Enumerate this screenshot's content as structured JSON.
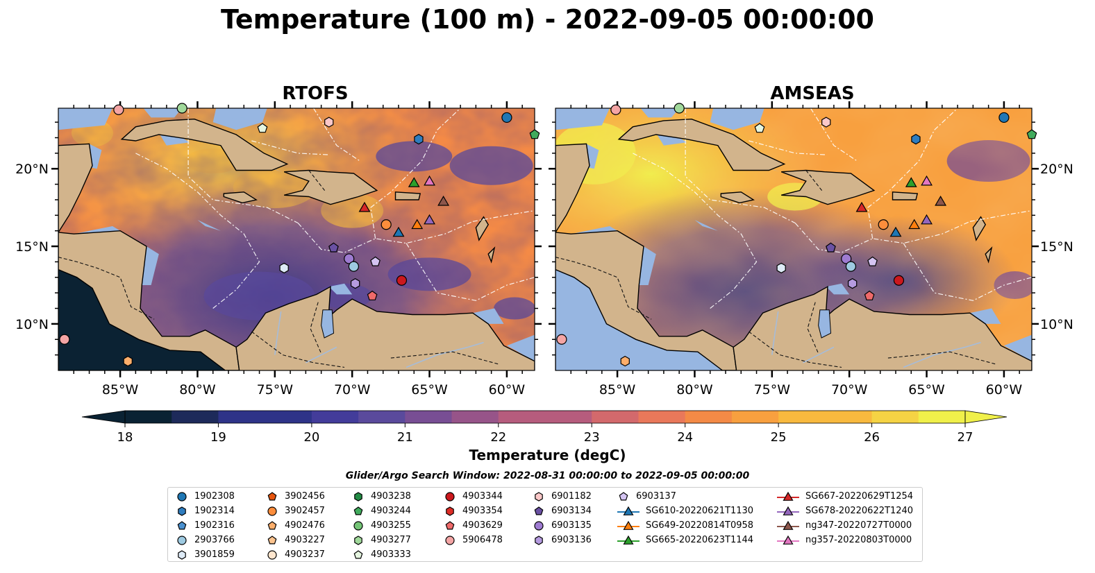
{
  "title": "Temperature (100 m) - 2022-09-05 00:00:00",
  "panels": [
    {
      "title": "RTOFS"
    },
    {
      "title": "AMSEAS"
    }
  ],
  "axes": {
    "lat_ticks": [
      "20°N",
      "15°N",
      "10°N"
    ],
    "lon_ticks": [
      "85°W",
      "80°W",
      "75°W",
      "70°W",
      "65°W",
      "60°W"
    ]
  },
  "colorbar": {
    "label": "Temperature (degC)",
    "min": 18,
    "max": 27,
    "ticks": [
      "18",
      "19",
      "20",
      "21",
      "22",
      "23",
      "24",
      "25",
      "26",
      "27"
    ],
    "extend": "both"
  },
  "search_window": "Glider/Argo Search Window: 2022-08-31 00:00:00 to 2022-09-05 00:00:00",
  "colors": {
    "land": "#d2b48c",
    "water_mask": "#97b6e1",
    "pacific_dark": "#0b2233",
    "cmap": [
      "#0a2233",
      "#1d2a5a",
      "#2e3388",
      "#433c9a",
      "#5a4a9c",
      "#784e94",
      "#975489",
      "#b65c7d",
      "#d3696c",
      "#e9785a",
      "#f48a46",
      "#f8a03f",
      "#f8b93e",
      "#f5d344",
      "#f0f04a"
    ]
  },
  "legend": {
    "columns": [
      [
        {
          "label": "1902308",
          "marker": "circle",
          "color": "#1f77b4"
        },
        {
          "label": "1902314",
          "marker": "hexagon",
          "color": "#2f7dbf"
        },
        {
          "label": "1902316",
          "marker": "pentagon",
          "color": "#4a90cf"
        },
        {
          "label": "2903766",
          "marker": "circle",
          "color": "#9ecae1"
        },
        {
          "label": "3901859",
          "marker": "hexagon",
          "color": "#deebf7"
        }
      ],
      [
        {
          "label": "3902456",
          "marker": "pentagon",
          "color": "#e6550d"
        },
        {
          "label": "3902457",
          "marker": "circle",
          "color": "#fd8d3c"
        },
        {
          "label": "4902476",
          "marker": "pentagon",
          "color": "#fdae6b"
        },
        {
          "label": "4903227",
          "marker": "pentagon",
          "color": "#fdc48f"
        },
        {
          "label": "4903237",
          "marker": "circle",
          "color": "#fee6ce"
        }
      ],
      [
        {
          "label": "4903238",
          "marker": "hexagon",
          "color": "#238b45"
        },
        {
          "label": "4903244",
          "marker": "pentagon",
          "color": "#41ab5d"
        },
        {
          "label": "4903255",
          "marker": "circle",
          "color": "#74c476"
        },
        {
          "label": "4903277",
          "marker": "hexagon",
          "color": "#a1d99b"
        },
        {
          "label": "4903333",
          "marker": "pentagon",
          "color": "#e5f5e0"
        }
      ],
      [
        {
          "label": "4903344",
          "marker": "circle",
          "color": "#cb181d"
        },
        {
          "label": "4903354",
          "marker": "hexagon",
          "color": "#de2d26"
        },
        {
          "label": "4903629",
          "marker": "pentagon",
          "color": "#ef6a6a"
        },
        {
          "label": "5906478",
          "marker": "circle",
          "color": "#f4a5a5"
        }
      ],
      [
        {
          "label": "6901182",
          "marker": "hexagon",
          "color": "#fbc8c8"
        },
        {
          "label": "6903134",
          "marker": "pentagon",
          "color": "#6a51a3"
        },
        {
          "label": "6903135",
          "marker": "circle",
          "color": "#9e7bd1"
        },
        {
          "label": "6903136",
          "marker": "hexagon",
          "color": "#b59be0"
        }
      ],
      [
        {
          "label": "6903137",
          "marker": "pentagon",
          "color": "#d4c4f2"
        },
        {
          "label": "SG610-20220621T1130",
          "marker": "triangle-line",
          "color": "#1f77b4"
        },
        {
          "label": "SG649-20220814T0958",
          "marker": "triangle-line",
          "color": "#ff7f0e"
        },
        {
          "label": "SG665-20220623T1144",
          "marker": "triangle-line",
          "color": "#2ca02c"
        }
      ],
      [
        {
          "label": "SG667-20220629T1254",
          "marker": "triangle-line",
          "color": "#d62728"
        },
        {
          "label": "SG678-20220622T1240",
          "marker": "triangle-line",
          "color": "#9467bd"
        },
        {
          "label": "ng347-20220727T0000",
          "marker": "triangle-line",
          "color": "#8c564b"
        },
        {
          "label": "ng357-20220803T0000",
          "marker": "triangle-line",
          "color": "#e377c2"
        }
      ]
    ]
  },
  "markers": [
    {
      "lon": -60.0,
      "lat": 23.3,
      "marker": "circle",
      "color": "#1f77b4"
    },
    {
      "lon": -65.7,
      "lat": 21.9,
      "marker": "hexagon",
      "color": "#2f7dbf"
    },
    {
      "lon": -70.2,
      "lat": 14.2,
      "marker": "circle",
      "color": "#9e7bd1"
    },
    {
      "lon": -69.9,
      "lat": 13.7,
      "marker": "circle",
      "color": "#9ecae1"
    },
    {
      "lon": -74.4,
      "lat": 13.6,
      "marker": "hexagon",
      "color": "#deebf7"
    },
    {
      "lon": -67.8,
      "lat": 16.4,
      "marker": "circle",
      "color": "#fd8d3c"
    },
    {
      "lon": -84.5,
      "lat": 7.6,
      "marker": "hexagon",
      "color": "#fdae6b"
    },
    {
      "lon": -58.2,
      "lat": 22.2,
      "marker": "pentagon",
      "color": "#41ab5d"
    },
    {
      "lon": -81.0,
      "lat": 23.9,
      "marker": "circle",
      "color": "#a1d99b"
    },
    {
      "lon": -75.8,
      "lat": 22.6,
      "marker": "pentagon",
      "color": "#e5f5e0"
    },
    {
      "lon": -66.8,
      "lat": 12.8,
      "marker": "circle",
      "color": "#cb181d"
    },
    {
      "lon": -68.7,
      "lat": 11.8,
      "marker": "pentagon",
      "color": "#ef6a6a"
    },
    {
      "lon": -88.6,
      "lat": 9.0,
      "marker": "circle",
      "color": "#f4a5a5"
    },
    {
      "lon": -85.1,
      "lat": 23.8,
      "marker": "circle",
      "color": "#f4a5a5"
    },
    {
      "lon": -71.5,
      "lat": 23.0,
      "marker": "hexagon",
      "color": "#fbc8c8"
    },
    {
      "lon": -71.2,
      "lat": 14.9,
      "marker": "pentagon",
      "color": "#6a51a3"
    },
    {
      "lon": -69.8,
      "lat": 12.6,
      "marker": "hexagon",
      "color": "#b59be0"
    },
    {
      "lon": -68.5,
      "lat": 14.0,
      "marker": "pentagon",
      "color": "#d4c4f2"
    },
    {
      "lon": -67.0,
      "lat": 15.9,
      "marker": "triangle",
      "color": "#1f77b4"
    },
    {
      "lon": -65.8,
      "lat": 16.4,
      "marker": "triangle",
      "color": "#ff7f0e"
    },
    {
      "lon": -66.0,
      "lat": 19.1,
      "marker": "triangle",
      "color": "#2ca02c"
    },
    {
      "lon": -69.2,
      "lat": 17.5,
      "marker": "triangle",
      "color": "#d62728"
    },
    {
      "lon": -65.0,
      "lat": 16.7,
      "marker": "triangle",
      "color": "#9467bd"
    },
    {
      "lon": -64.1,
      "lat": 17.9,
      "marker": "triangle",
      "color": "#8c564b"
    },
    {
      "lon": -65.0,
      "lat": 19.2,
      "marker": "triangle",
      "color": "#e377c2"
    }
  ]
}
